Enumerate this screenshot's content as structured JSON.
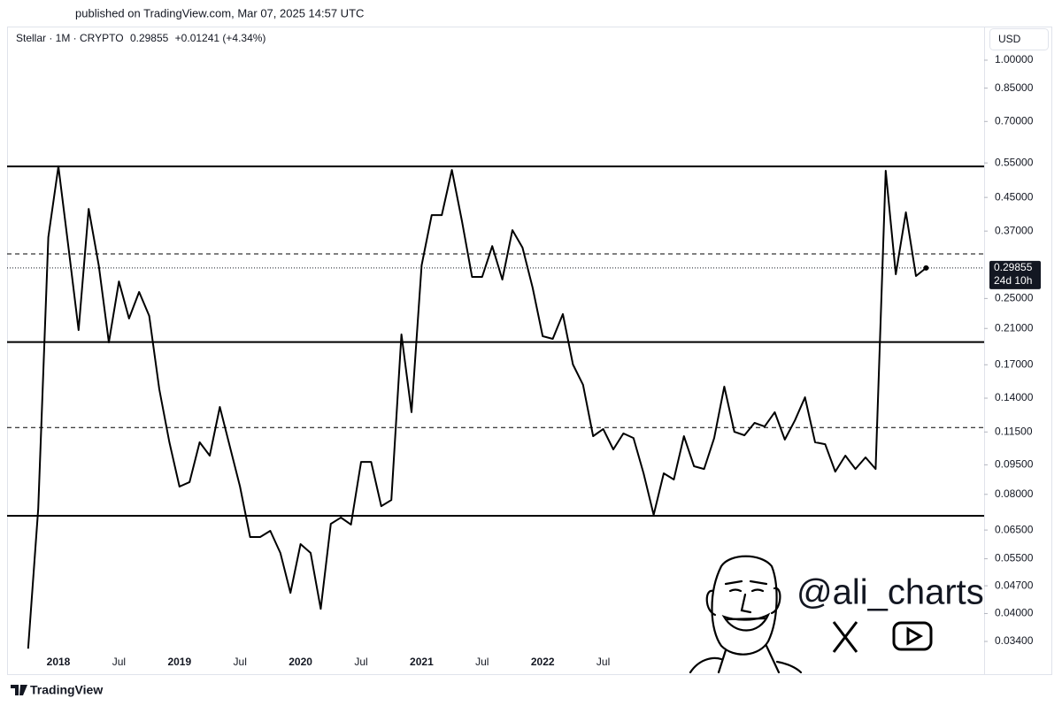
{
  "published": "published on TradingView.com, Mar 07, 2025 14:57 UTC",
  "footer_brand": "TradingView",
  "watermark": "@ali_charts",
  "chart_data": {
    "type": "line",
    "symbol": "Stellar · 1M · CRYPTO",
    "last_price": 0.29855,
    "change": "+0.01241 (+4.34%)",
    "currency": "USD",
    "countdown": "24d 10h",
    "log_scale": true,
    "color": "#000000",
    "categories": [
      null,
      null,
      null,
      "2018",
      null,
      null,
      null,
      null,
      null,
      "Jul",
      null,
      null,
      null,
      null,
      null,
      "2019",
      null,
      null,
      null,
      null,
      null,
      "Jul",
      null,
      null,
      null,
      null,
      null,
      "2020",
      null,
      null,
      null,
      null,
      null,
      "Jul",
      null,
      null,
      null,
      null,
      null,
      "2021",
      null,
      null,
      null,
      null,
      null,
      "Jul",
      null,
      null,
      null,
      null,
      null,
      "2022",
      null,
      null,
      null,
      null,
      null,
      "Jul",
      null,
      null,
      null,
      null,
      null,
      null,
      null,
      null,
      null,
      null,
      null,
      null,
      null,
      null,
      null,
      null,
      null,
      null,
      null,
      null,
      null,
      null,
      null,
      null,
      null,
      null,
      null,
      null,
      null,
      null,
      null,
      null
    ],
    "values": [
      0.0326,
      0.0736,
      0.357,
      0.539,
      0.336,
      0.208,
      0.421,
      0.303,
      0.1936,
      0.276,
      0.2225,
      0.2597,
      0.226,
      0.1474,
      0.1083,
      0.0837,
      0.0859,
      0.1083,
      0.1002,
      0.133,
      0.1055,
      0.0837,
      0.0624,
      0.0624,
      0.0647,
      0.0569,
      0.0451,
      0.0599,
      0.0569,
      0.0411,
      0.0674,
      0.0699,
      0.0671,
      0.0966,
      0.0966,
      0.0747,
      0.0774,
      0.2028,
      0.129,
      0.303,
      0.406,
      0.406,
      0.528,
      0.392,
      0.2834,
      0.2834,
      0.339,
      0.279,
      0.372,
      0.336,
      0.2664,
      0.2008,
      0.1977,
      0.2283,
      0.1703,
      0.1513,
      0.1122,
      0.117,
      0.1039,
      0.114,
      0.111,
      0.0904,
      0.071,
      0.0904,
      0.0872,
      0.1122,
      0.0942,
      0.0927,
      0.111,
      0.1497,
      0.1151,
      0.1128,
      0.1212,
      0.1187,
      0.129,
      0.11,
      0.123,
      0.1407,
      0.1083,
      0.1071,
      0.0913,
      0.1002,
      0.0927,
      0.0992,
      0.0927,
      0.5256,
      0.2878,
      0.4126,
      0.2848,
      0.29855
    ],
    "solid_levels": [
      0.539,
      0.194,
      0.0706
    ],
    "dashed_levels": [
      0.324,
      0.118
    ],
    "ylim": [
      0.0284,
      1.216
    ],
    "yticks": [
      {
        "value": 1,
        "label": "1.00000"
      },
      {
        "value": 0.85,
        "label": "0.85000"
      },
      {
        "value": 0.7,
        "label": "0.70000"
      },
      {
        "value": 0.55,
        "label": "0.55000"
      },
      {
        "value": 0.45,
        "label": "0.45000"
      },
      {
        "value": 0.37,
        "label": "0.37000"
      },
      {
        "value": 0.25,
        "label": "0.25000"
      },
      {
        "value": 0.21,
        "label": "0.21000"
      },
      {
        "value": 0.17,
        "label": "0.17000"
      },
      {
        "value": 0.14,
        "label": "0.14000"
      },
      {
        "value": 0.115,
        "label": "0.11500"
      },
      {
        "value": 0.095,
        "label": "0.09500"
      },
      {
        "value": 0.08,
        "label": "0.08000"
      },
      {
        "value": 0.065,
        "label": "0.06500"
      },
      {
        "value": 0.055,
        "label": "0.05500"
      },
      {
        "value": 0.047,
        "label": "0.04700"
      },
      {
        "value": 0.04,
        "label": "0.04000"
      },
      {
        "value": 0.034,
        "label": "0.03400"
      }
    ],
    "grid": false
  }
}
